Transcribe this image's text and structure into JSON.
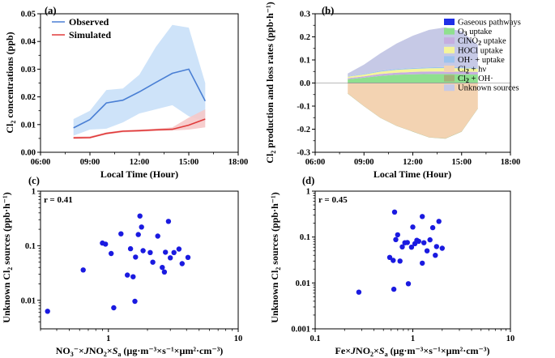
{
  "chart_data": [
    {
      "panel": "(a)",
      "type": "line",
      "xlabel": "Local Time (Hour)",
      "ylabel": "Cl2 concentrations (ppb)",
      "ylabel_main": "Cl",
      "ylabel_sub": "2",
      "ylabel_rest": " concentrations (ppb)",
      "xlim": [
        6,
        18
      ],
      "ylim": [
        0,
        0.05
      ],
      "xticks": [
        6,
        9,
        12,
        15,
        18
      ],
      "xtick_labels": [
        "06:00",
        "09:00",
        "12:00",
        "15:00",
        "18:00"
      ],
      "yticks": [
        0,
        0.01,
        0.02,
        0.03,
        0.04,
        0.05
      ],
      "ytick_labels": [
        "0.00",
        "0.01",
        "0.02",
        "0.03",
        "0.04",
        "0.05"
      ],
      "legend": [
        "Observed",
        "Simulated"
      ],
      "series": [
        {
          "name": "Observed",
          "color": "#4a7fd4",
          "band_color": "#c9e0f8",
          "x": [
            8,
            9,
            10,
            11,
            12,
            13,
            14,
            15,
            16
          ],
          "y": [
            0.0088,
            0.0118,
            0.0178,
            0.0188,
            0.0218,
            0.0252,
            0.0285,
            0.03,
            0.0185
          ],
          "lower": [
            0.006,
            0.0082,
            0.0085,
            0.0108,
            0.014,
            0.0155,
            0.017,
            0.013,
            0.011
          ],
          "upper": [
            0.012,
            0.015,
            0.0225,
            0.023,
            0.028,
            0.038,
            0.046,
            0.045,
            0.025
          ]
        },
        {
          "name": "Simulated",
          "color": "#e03a3a",
          "band_color": "#f6c8c8",
          "x": [
            8,
            9,
            10,
            11,
            12,
            13,
            14,
            15,
            16
          ],
          "y": [
            0.0052,
            0.0053,
            0.0068,
            0.0076,
            0.0078,
            0.0081,
            0.0083,
            0.0098,
            0.012
          ],
          "lower": [
            0.0048,
            0.005,
            0.0064,
            0.0072,
            0.0074,
            0.0077,
            0.0078,
            0.0082,
            0.009
          ],
          "upper": [
            0.0056,
            0.0058,
            0.0072,
            0.008,
            0.0082,
            0.0085,
            0.009,
            0.0125,
            0.0155
          ]
        }
      ]
    },
    {
      "panel": "(b)",
      "type": "area",
      "xlabel": "Local Time (Hour)",
      "ylabel": "Cl2 production and loss rates (ppb·h⁻¹)",
      "ylabel_main": "Cl",
      "ylabel_sub": "2",
      "ylabel_rest": " production and loss rates (ppb·h⁻¹)",
      "xlim": [
        6,
        18
      ],
      "ylim": [
        -0.3,
        0.3
      ],
      "xticks": [
        6,
        9,
        12,
        15,
        18
      ],
      "xtick_labels": [
        "06:00",
        "09:00",
        "12:00",
        "15:00",
        "18:00"
      ],
      "yticks": [
        -0.3,
        -0.2,
        -0.1,
        0,
        0.1,
        0.2,
        0.3
      ],
      "ytick_labels": [
        "-0.3",
        "-0.2",
        "-0.1",
        "0.0",
        "0.1",
        "0.2",
        "0.3"
      ],
      "x": [
        8,
        9,
        10,
        11,
        12,
        13,
        14,
        15,
        16
      ],
      "positive_series": [
        {
          "name": "Gaseous pathways",
          "color": "#1f2fe6",
          "values": [
            0.001,
            0.001,
            0.001,
            0.001,
            0.001,
            0.001,
            0.001,
            0.001,
            0.001
          ]
        },
        {
          "name": "O3 uptake",
          "color": "#8fe08f",
          "values": [
            0.015,
            0.022,
            0.03,
            0.035,
            0.037,
            0.038,
            0.038,
            0.037,
            0.036
          ]
        },
        {
          "name": "ClNO2 uptake",
          "color": "#c5aee0",
          "values": [
            0.005,
            0.006,
            0.008,
            0.009,
            0.01,
            0.011,
            0.011,
            0.011,
            0.011
          ]
        },
        {
          "name": "HOCl uptake",
          "color": "#f5f59a",
          "values": [
            0.006,
            0.008,
            0.01,
            0.012,
            0.013,
            0.014,
            0.015,
            0.015,
            0.014
          ]
        },
        {
          "name": "OH· + uptake",
          "color": "#9cc3ee",
          "values": [
            0.002,
            0.003,
            0.004,
            0.004,
            0.004,
            0.004,
            0.004,
            0.004,
            0.004
          ]
        },
        {
          "name": "Unknown sources",
          "color": "#c6c9e6",
          "values": [
            0.012,
            0.04,
            0.075,
            0.11,
            0.14,
            0.162,
            0.172,
            0.155,
            0.1
          ]
        }
      ],
      "negative_series": [
        {
          "name": "Cl2 + hv",
          "color": "#f3d3b2",
          "values": [
            -0.045,
            -0.1,
            -0.15,
            -0.185,
            -0.21,
            -0.235,
            -0.24,
            -0.21,
            -0.11
          ]
        },
        {
          "name": "Cl2 + OH·",
          "color": "#a3b27a",
          "values": [
            -0.001,
            -0.001,
            -0.001,
            -0.001,
            -0.001,
            -0.001,
            -0.001,
            -0.001,
            -0.001
          ]
        }
      ],
      "legend": [
        {
          "text": "Gaseous pathways",
          "color": "#1f2fe6"
        },
        {
          "text": "O",
          "sub": "3",
          "rest": " uptake",
          "color": "#8fe08f"
        },
        {
          "text": "ClNO",
          "sub": "2",
          "rest": " uptake",
          "color": "#c5aee0"
        },
        {
          "text": "HOCl uptake",
          "color": "#f5f59a"
        },
        {
          "text": "OH· + uptake",
          "color": "#9cc3ee"
        },
        {
          "text": "Cl",
          "sub": "2",
          "rest": " + hν",
          "color": "#f3d3b2"
        },
        {
          "text": "Cl",
          "sub": "2",
          "rest": " + OH·",
          "color": "#a3b27a"
        },
        {
          "text": "Unknown sources",
          "color": "#c6c9e6"
        }
      ]
    },
    {
      "panel": "(c)",
      "type": "scatter",
      "annotation": "r = 0.41",
      "xlabel": "NO3⁻×JNO2×Sa (µg·m⁻³×s⁻¹×µm²·cm⁻³)",
      "xlabel_parts": [
        "NO",
        "3",
        "⁻×",
        "J",
        "NO",
        "2",
        "×",
        "S",
        "a",
        " (µg·m⁻³×s⁻¹×µm²·cm⁻³)"
      ],
      "ylabel": "Unknown Cl2 sources (ppb·h⁻¹)",
      "ylabel_main": "Unknown Cl",
      "ylabel_sub": "2",
      "ylabel_rest": " sources (ppb·h⁻¹)",
      "xscale": "log",
      "yscale": "log",
      "xlim": [
        0.3,
        10
      ],
      "ylim": [
        0.003,
        1
      ],
      "xticks": [
        1,
        10
      ],
      "xtick_labels": [
        "1",
        "10"
      ],
      "yticks": [
        0.01,
        0.1,
        1
      ],
      "ytick_labels": [
        "0.01",
        "0.1",
        "1"
      ],
      "color": "#1a1ae0",
      "points": [
        [
          0.34,
          0.0063
        ],
        [
          0.64,
          0.036
        ],
        [
          0.9,
          0.112
        ],
        [
          0.95,
          0.107
        ],
        [
          1.05,
          0.072
        ],
        [
          1.1,
          0.0073
        ],
        [
          1.25,
          0.165
        ],
        [
          1.4,
          0.029
        ],
        [
          1.48,
          0.088
        ],
        [
          1.55,
          0.027
        ],
        [
          1.6,
          0.0096
        ],
        [
          1.62,
          0.062
        ],
        [
          1.7,
          0.16
        ],
        [
          1.75,
          0.35
        ],
        [
          1.8,
          0.22
        ],
        [
          1.85,
          0.081
        ],
        [
          2.1,
          0.075
        ],
        [
          2.2,
          0.05
        ],
        [
          2.4,
          0.15
        ],
        [
          2.6,
          0.04
        ],
        [
          2.7,
          0.033
        ],
        [
          2.75,
          0.076
        ],
        [
          2.9,
          0.28
        ],
        [
          3.0,
          0.06
        ],
        [
          3.2,
          0.075
        ],
        [
          3.5,
          0.087
        ],
        [
          3.7,
          0.047
        ],
        [
          4.1,
          0.061
        ]
      ]
    },
    {
      "panel": "(d)",
      "type": "scatter",
      "annotation": "r = 0.45",
      "xlabel": "Fe×JNO2×Sa (µg·m⁻³×s⁻¹×µm²·cm⁻³)",
      "xlabel_parts": [
        "Fe×",
        "",
        "",
        "J",
        "NO",
        "2",
        "×",
        "S",
        "a",
        " (µg·m⁻³×s⁻¹×µm²·cm⁻³)"
      ],
      "ylabel": "Unknown Cl2 sources (ppb·h⁻¹)",
      "ylabel_main": "Unknown Cl",
      "ylabel_sub": "2",
      "ylabel_rest": " sources (ppb·h⁻¹)",
      "xscale": "log",
      "yscale": "log",
      "xlim": [
        0.1,
        10
      ],
      "ylim": [
        0.001,
        1
      ],
      "xticks": [
        0.1,
        1,
        10
      ],
      "xtick_labels": [
        "0.1",
        "1",
        "10"
      ],
      "yticks": [
        0.001,
        0.01,
        0.1,
        1
      ],
      "ytick_labels": [
        "0.001",
        "0.01",
        "0.1",
        "1"
      ],
      "color": "#1a1ae0",
      "points": [
        [
          0.28,
          0.0063
        ],
        [
          0.58,
          0.036
        ],
        [
          0.63,
          0.031
        ],
        [
          0.64,
          0.0073
        ],
        [
          0.65,
          0.35
        ],
        [
          0.67,
          0.088
        ],
        [
          0.7,
          0.112
        ],
        [
          0.74,
          0.03
        ],
        [
          0.78,
          0.061
        ],
        [
          0.83,
          0.075
        ],
        [
          0.88,
          0.076
        ],
        [
          0.9,
          0.0096
        ],
        [
          0.97,
          0.06
        ],
        [
          1.0,
          0.165
        ],
        [
          1.05,
          0.072
        ],
        [
          1.1,
          0.085
        ],
        [
          1.15,
          0.081
        ],
        [
          1.25,
          0.28
        ],
        [
          1.25,
          0.027
        ],
        [
          1.3,
          0.075
        ],
        [
          1.4,
          0.05
        ],
        [
          1.5,
          0.087
        ],
        [
          1.6,
          0.16
        ],
        [
          1.7,
          0.04
        ],
        [
          1.75,
          0.062
        ],
        [
          1.85,
          0.22
        ],
        [
          2.0,
          0.057
        ]
      ]
    }
  ]
}
